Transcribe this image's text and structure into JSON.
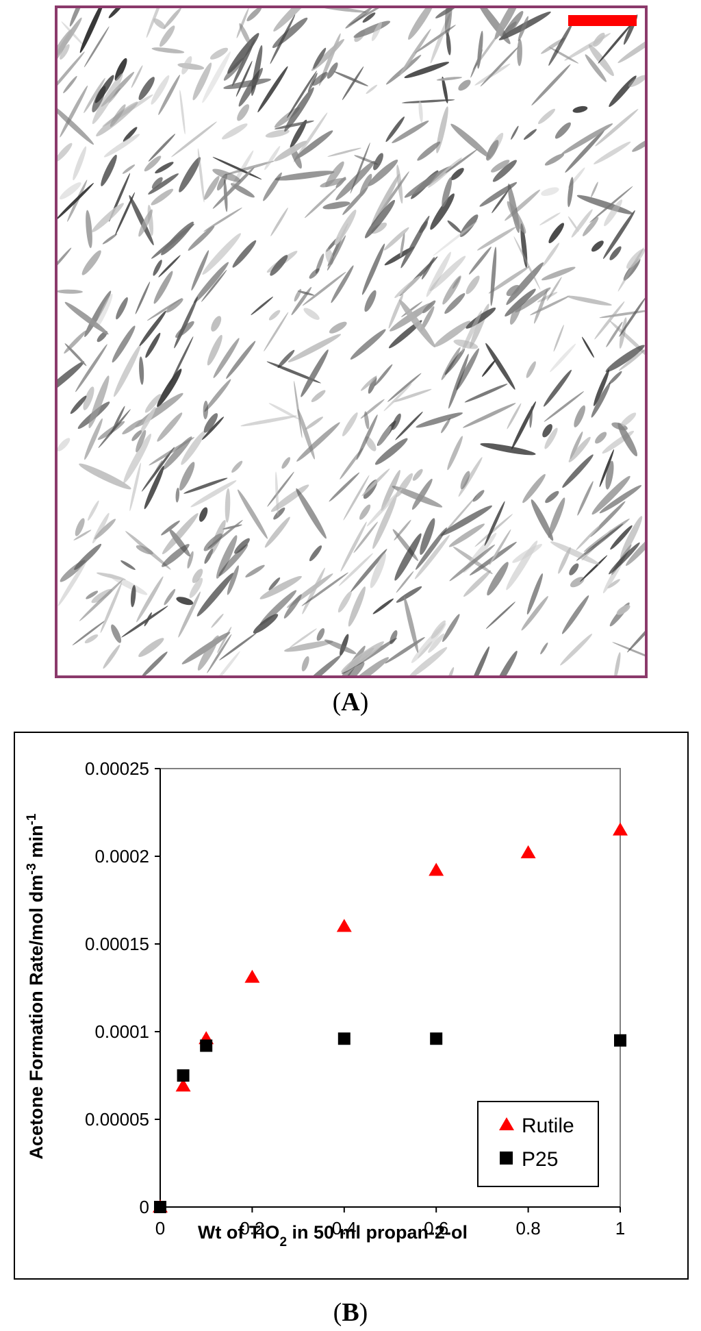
{
  "panel_a": {
    "caption_paren_open": "(",
    "caption_letter": "A",
    "caption_paren_close": ")",
    "frame_color": "#8b3a6b",
    "scale_bar_color": "#ff0000",
    "image_kind": "micrograph of rod-shaped particles"
  },
  "panel_b": {
    "caption_paren_open": "(",
    "caption_letter": "B",
    "caption_paren_close": ")"
  },
  "chart_data": {
    "type": "scatter",
    "title": "",
    "xlabel": {
      "pre": "Wt of TiO",
      "sub": "2",
      "post": " in 50 ml propan-2-ol"
    },
    "ylabel": {
      "pre": "Acetone Formation Rate/mol dm",
      "sup1": "-3",
      "mid": " min",
      "sup2": "-1"
    },
    "xlim": [
      0,
      1
    ],
    "ylim": [
      0,
      0.00025
    ],
    "x_ticks": [
      0,
      0.2,
      0.4,
      0.6,
      0.8,
      1
    ],
    "x_tick_labels": [
      "0",
      "0.2",
      "0.4",
      "0.6",
      "0.8",
      "1"
    ],
    "y_ticks": [
      0,
      5e-05,
      0.0001,
      0.00015,
      0.0002,
      0.00025
    ],
    "y_tick_labels": [
      "0",
      "0.00005",
      "0.0001",
      "0.00015",
      "0.0002",
      "0.00025"
    ],
    "grid": false,
    "legend_position": "bottom-right",
    "series": [
      {
        "name": "Rutile",
        "marker": "triangle",
        "color": "#ff0000",
        "x": [
          0,
          0.05,
          0.1,
          0.2,
          0.4,
          0.6,
          0.8,
          1
        ],
        "y": [
          0,
          6.9e-05,
          9.6e-05,
          0.000131,
          0.00016,
          0.000192,
          0.000202,
          0.000215
        ]
      },
      {
        "name": "P25",
        "marker": "square",
        "color": "#000000",
        "x": [
          0,
          0.05,
          0.1,
          0.4,
          0.6,
          1
        ],
        "y": [
          0,
          7.5e-05,
          9.2e-05,
          9.6e-05,
          9.6e-05,
          9.5e-05
        ]
      }
    ]
  }
}
